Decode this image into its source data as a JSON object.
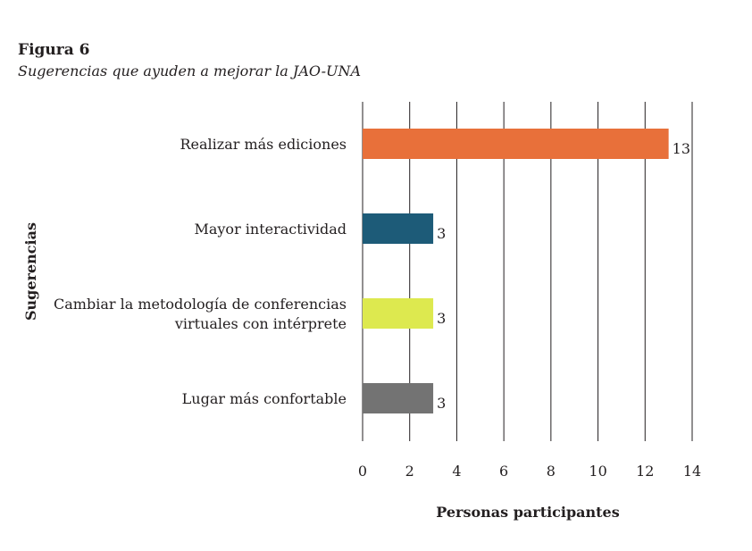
{
  "figure": {
    "label": "Figura 6",
    "caption": "Sugerencias que ayuden a mejorar la JAO-UNA"
  },
  "chart_data": {
    "type": "bar",
    "orientation": "horizontal",
    "categories": [
      "Realizar más ediciones",
      "Mayor interactividad",
      "Cambiar la metodología de conferencias virtuales con intérprete",
      "Lugar más confortable"
    ],
    "category_lines": [
      [
        "Realizar más ediciones"
      ],
      [
        "Mayor interactividad"
      ],
      [
        "Cambiar la metodología de conferencias",
        "virtuales con intérprete"
      ],
      [
        "Lugar más confortable"
      ]
    ],
    "values": [
      13,
      3,
      3,
      3
    ],
    "colors": [
      "#e8703a",
      "#1d5b78",
      "#dde94f",
      "#737373"
    ],
    "xlabel": "Personas participantes",
    "ylabel": "Sugerencias",
    "xlim": [
      0,
      14
    ],
    "xticks": [
      0,
      2,
      4,
      6,
      8,
      10,
      12,
      14
    ],
    "grid": true,
    "data_labels": true
  }
}
